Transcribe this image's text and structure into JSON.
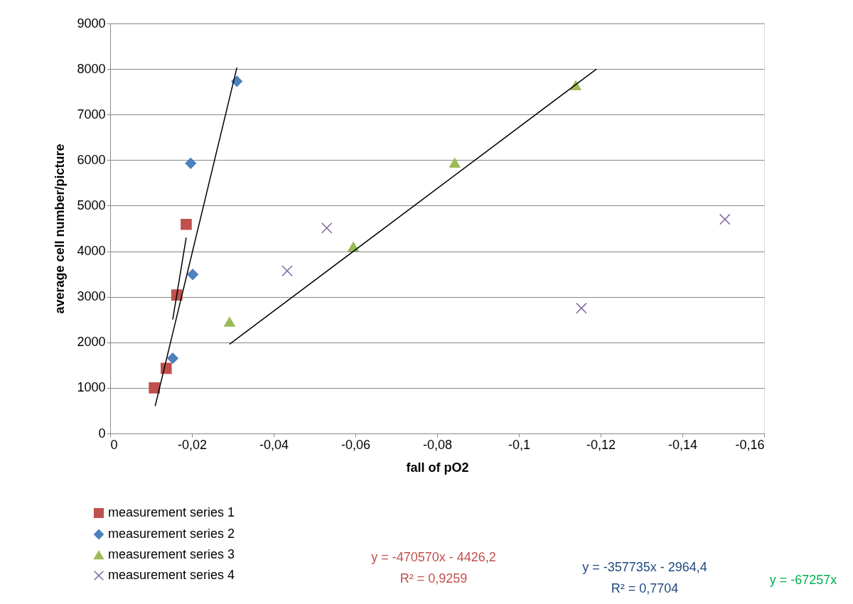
{
  "chart_data": {
    "type": "scatter",
    "xlabel": "fall of pO2",
    "ylabel": "average cell number/picture",
    "xlim": [
      0,
      -0.16
    ],
    "xticks": [
      {
        "value": 0,
        "label": "0"
      },
      {
        "value": -0.02,
        "label": "-0,02"
      },
      {
        "value": -0.04,
        "label": "-0,04"
      },
      {
        "value": -0.06,
        "label": "-0,06"
      },
      {
        "value": -0.08,
        "label": "-0,08"
      },
      {
        "value": -0.1,
        "label": "-0,1"
      },
      {
        "value": -0.12,
        "label": "-0,12"
      },
      {
        "value": -0.14,
        "label": "-0,14"
      },
      {
        "value": -0.16,
        "label": "-0,16"
      }
    ],
    "ylim": [
      0,
      9000
    ],
    "yticks": [
      0,
      1000,
      2000,
      3000,
      4000,
      5000,
      6000,
      7000,
      8000,
      9000
    ],
    "grid": "y",
    "legend": "bottom left",
    "series": [
      {
        "name": "measurement series 1",
        "color": "#c0504d",
        "marker": "square",
        "x": [
          -0.0108,
          -0.0137,
          -0.0163,
          -0.0186
        ],
        "values": [
          1000,
          1430,
          3040,
          4590
        ]
      },
      {
        "name": "measurement series 2",
        "color": "#4f81bd",
        "marker": "diamond",
        "x": [
          -0.0153,
          -0.0202,
          -0.0197,
          -0.031
        ],
        "values": [
          1650,
          3490,
          5930,
          7730
        ]
      },
      {
        "name": "measurement series 3",
        "color": "#9bbb59",
        "marker": "triangle",
        "x": [
          -0.0292,
          -0.0595,
          -0.0843,
          -0.1139
        ],
        "values": [
          2450,
          4100,
          5940,
          7640
        ]
      },
      {
        "name": "measurement series 4",
        "color": "#8064a2",
        "marker": "cross",
        "x": [
          -0.0433,
          -0.053,
          -0.1153,
          -0.1504
        ],
        "values": [
          3570,
          4510,
          2750,
          4700
        ]
      },
      {
        "type": "line",
        "color": "#000000",
        "line_style": "solid",
        "x": [
          -0.0153,
          -0.0186
        ],
        "values": [
          2500,
          4300
        ]
      },
      {
        "type": "line",
        "color": "#000000",
        "line_style": "solid",
        "x": [
          -0.011,
          -0.031
        ],
        "values": [
          600,
          8030
        ]
      },
      {
        "type": "line",
        "color": "#000000",
        "line_style": "solid",
        "x": [
          -0.0292,
          -0.119
        ],
        "values": [
          1960,
          8000
        ]
      }
    ],
    "annotations": [
      "y = -470570x - 4426,2\nR² = 0,9259",
      "y = -357735x - 2964,4\nR² = 0,7704",
      "y = -67257x"
    ]
  }
}
